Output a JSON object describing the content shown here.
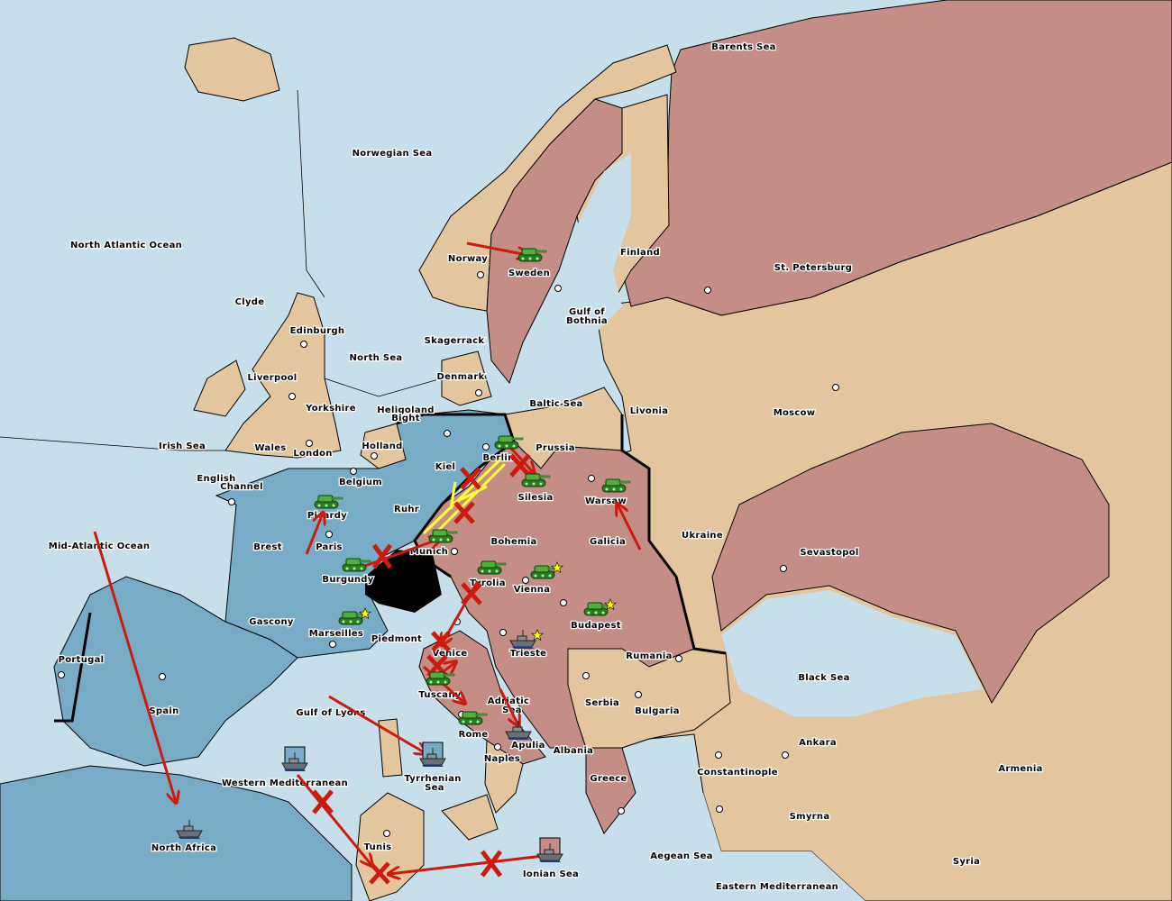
{
  "map": {
    "colors": {
      "sea": "#c6dfea",
      "neutral": "#e3c69d",
      "pink_power": "#c48e86",
      "blue_power": "#78acc6",
      "impassable": "#000000",
      "order_arrow": "#cc1a0e",
      "support_arrow": "#ffff33",
      "army": "#3a9a2a",
      "fleet": "#707880"
    },
    "provinces": [
      "Barents Sea",
      "Norwegian Sea",
      "North Atlantic Ocean",
      "Norway",
      "Sweden",
      "Finland",
      "St. Petersburg",
      "Gulf of",
      "Bothnia",
      "Clyde",
      "Edinburgh",
      "North Sea",
      "Skagerrack",
      "Liverpool",
      "Denmark",
      "Baltic Sea",
      "Livonia",
      "Moscow",
      "Yorkshire",
      "Heligoland",
      "Bight",
      "Irish Sea",
      "Wales",
      "London",
      "Holland",
      "Prussia",
      "Kiel",
      "Berlin",
      "English",
      "Channel",
      "Belgium",
      "Silesia",
      "Warsaw",
      "Picardy",
      "Ruhr",
      "Ukraine",
      "Mid-Atlantic Ocean",
      "Brest",
      "Paris",
      "Munich",
      "Bohemia",
      "Galicia",
      "Sevastopol",
      "Burgundy",
      "Tyrolia",
      "Vienna",
      "Gascony",
      "Budapest",
      "Marseilles",
      "Piedmont",
      "Portugal",
      "Venice",
      "Trieste",
      "Rumania",
      "Black Sea",
      "Tuscany",
      "Serbia",
      "Spain",
      "Gulf of Lyons",
      "Adriatic",
      "Sea",
      "Bulgaria",
      "Rome",
      "Apulia",
      "Ankara",
      "Albania",
      "Naples",
      "Armenia",
      "Constantinople",
      "Greece",
      "Western Mediterranean",
      "Tyrrhenian",
      "Sea",
      "Smyrna",
      "North Africa",
      "Tunis",
      "Aegean Sea",
      "Syria",
      "Ionian Sea",
      "Eastern Mediterranean"
    ],
    "units": [
      {
        "province": "Sweden",
        "type": "army-icon",
        "power": "pink"
      },
      {
        "province": "Berlin",
        "type": "army-icon",
        "power": "pink"
      },
      {
        "province": "Silesia",
        "type": "army-icon",
        "power": "pink"
      },
      {
        "province": "Warsaw",
        "type": "army-icon",
        "power": "pink"
      },
      {
        "province": "Picardy",
        "type": "army-icon",
        "power": "blue"
      },
      {
        "province": "Munich",
        "type": "army-icon",
        "power": "pink"
      },
      {
        "province": "Burgundy",
        "type": "army-icon",
        "power": "blue"
      },
      {
        "province": "Tyrolia",
        "type": "army-icon",
        "power": "pink"
      },
      {
        "province": "Vienna",
        "type": "army-icon",
        "power": "pink",
        "star": true
      },
      {
        "province": "Budapest",
        "type": "army-icon",
        "power": "pink",
        "star": true
      },
      {
        "province": "Marseilles",
        "type": "army-icon",
        "power": "blue",
        "star": true
      },
      {
        "province": "Tuscany",
        "type": "army-icon",
        "power": "pink"
      },
      {
        "province": "Rome",
        "type": "army-icon",
        "power": "pink"
      },
      {
        "province": "Trieste",
        "type": "fleet-icon",
        "power": "pink",
        "star": true
      },
      {
        "province": "Apulia",
        "type": "fleet-icon",
        "power": "pink"
      },
      {
        "province": "North Africa",
        "type": "fleet-icon",
        "power": "blue"
      },
      {
        "province": "Western Mediterranean",
        "type": "fleet-icon",
        "power": "blue",
        "boxed": true
      },
      {
        "province": "Tyrrhenian Sea",
        "type": "fleet-icon",
        "power": "blue",
        "boxed": true
      },
      {
        "province": "Ionian Sea",
        "type": "fleet-icon",
        "power": "pink",
        "boxed": true
      }
    ]
  }
}
